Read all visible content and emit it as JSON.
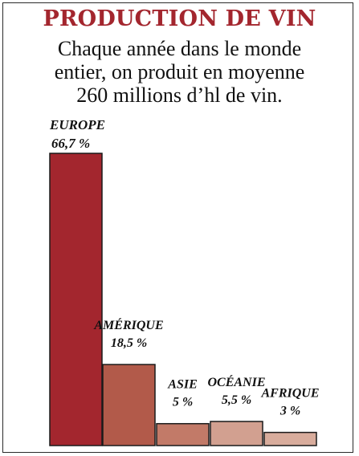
{
  "header": {
    "title": "PRODUCTION DE VIN",
    "subtitle_lines": [
      "Chaque année dans le monde",
      "entier, on produit en moyenne",
      "260 millions d’hl de vin."
    ]
  },
  "chart_data": {
    "type": "bar",
    "title": "PRODUCTION DE VIN",
    "subtitle": "Chaque année dans le monde entier, on produit en moyenne 260 millions d’hl de vin.",
    "categories": [
      "EUROPE",
      "AMÉRIQUE",
      "ASIE",
      "OCÉANIE",
      "AFRIQUE"
    ],
    "values": [
      66.7,
      18.5,
      5,
      5.5,
      3
    ],
    "value_labels": [
      "66,7 %",
      "18,5 %",
      "5 %",
      "5,5 %",
      "3 %"
    ],
    "unit": "%",
    "colors": [
      "#a3262e",
      "#b25a4a",
      "#c27a68",
      "#d2a090",
      "#d8ac9c"
    ],
    "xlabel": "",
    "ylabel": "",
    "ylim": [
      0,
      66.7
    ],
    "grid": false,
    "legend": "none"
  }
}
